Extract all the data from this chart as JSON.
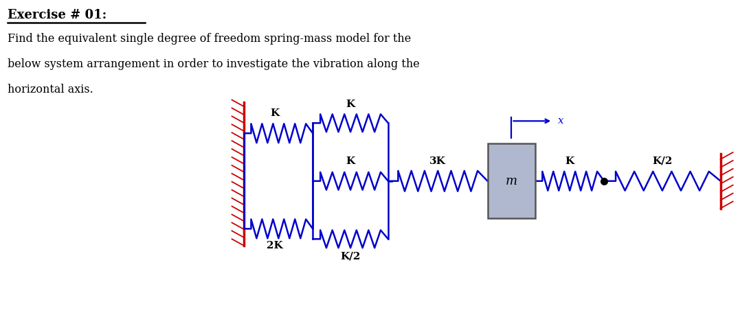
{
  "title_bold": "Exercise # 01:",
  "body_line1": "Find the equivalent single degree of freedom spring-mass model for the",
  "body_line2": "below system arrangement in order to investigate the vibration along the",
  "body_line3": "horizontal axis.",
  "bg_color": "#ffffff",
  "wall_color": "#cc0000",
  "spring_color": "#0000cc",
  "mass_color_face": "#b0b8d0",
  "mass_color_edge": "#555555",
  "label_color": "#000000",
  "fig_width": 10.77,
  "fig_height": 4.59,
  "dpi": 100
}
